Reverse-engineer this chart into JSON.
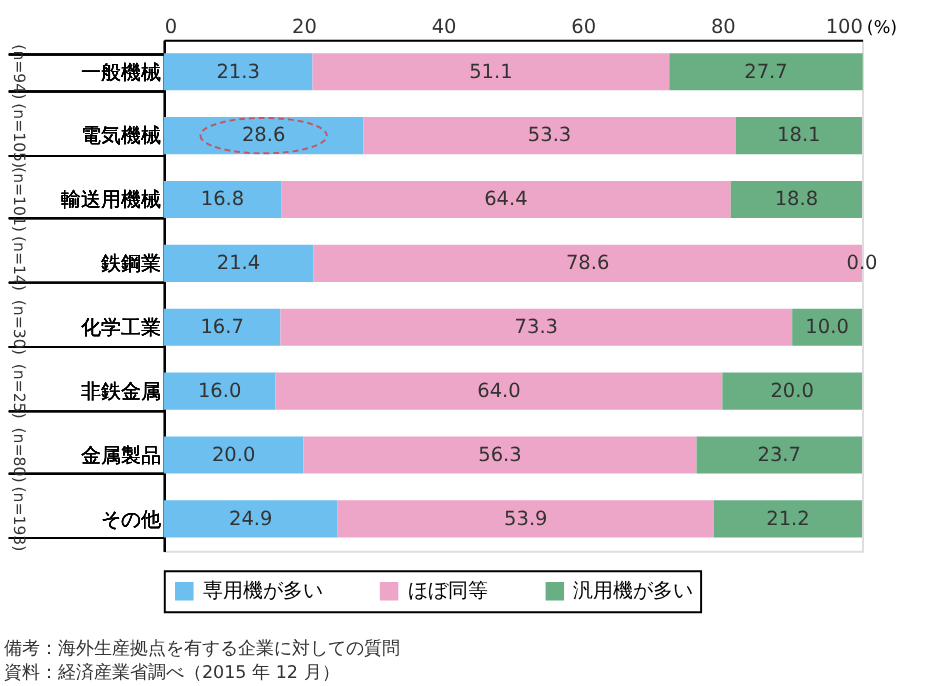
{
  "chart_data": {
    "type": "bar",
    "orientation": "horizontal",
    "stacked": true,
    "categories": [
      "一般機械",
      "電気機械",
      "輸送用機械",
      "鉄鋼業",
      "化学工業",
      "非鉄金属",
      "金属製品",
      "その他"
    ],
    "series": [
      {
        "name": "専用機が多い",
        "color": "#6cbfee",
        "values": [
          21.3,
          28.6,
          16.8,
          21.4,
          16.7,
          16.0,
          20.0,
          24.9
        ],
        "value_labels": [
          "21.3",
          "28.6",
          "16.8",
          "21.4",
          "16.7",
          "16.0",
          "20.0",
          "24.9"
        ]
      },
      {
        "name": "ほぼ同等",
        "color": "#eea6c8",
        "values": [
          51.1,
          53.3,
          64.4,
          78.6,
          73.3,
          64.0,
          56.3,
          53.9
        ],
        "value_labels": [
          "51.1",
          "53.3",
          "64.4",
          "78.6",
          "73.3",
          "64.0",
          "56.3",
          "53.9"
        ]
      },
      {
        "name": "汎用機が多い",
        "color": "#6aae84",
        "values": [
          27.7,
          18.1,
          18.8,
          0.0,
          10.0,
          20.0,
          23.7,
          21.2
        ],
        "value_labels": [
          "27.7",
          "18.1",
          "18.8",
          "0.0",
          "10.0",
          "20.0",
          "23.7",
          "21.2"
        ]
      }
    ],
    "xlim": [
      0,
      100
    ],
    "xticks": [
      0,
      20,
      40,
      60,
      80,
      100
    ],
    "xlabel": "(%)",
    "legend": "bottom",
    "annotations": [
      "(n=94)",
      "(n=105)",
      "(n=101)",
      "(n=14)",
      "(n=30)",
      "(n=25)",
      "(n=80)",
      "(n=193)",
      "備考：海外生産拠点を有する企業に対しての質問",
      "資料：経済産業省調べ（2015 年 12 月）"
    ]
  }
}
